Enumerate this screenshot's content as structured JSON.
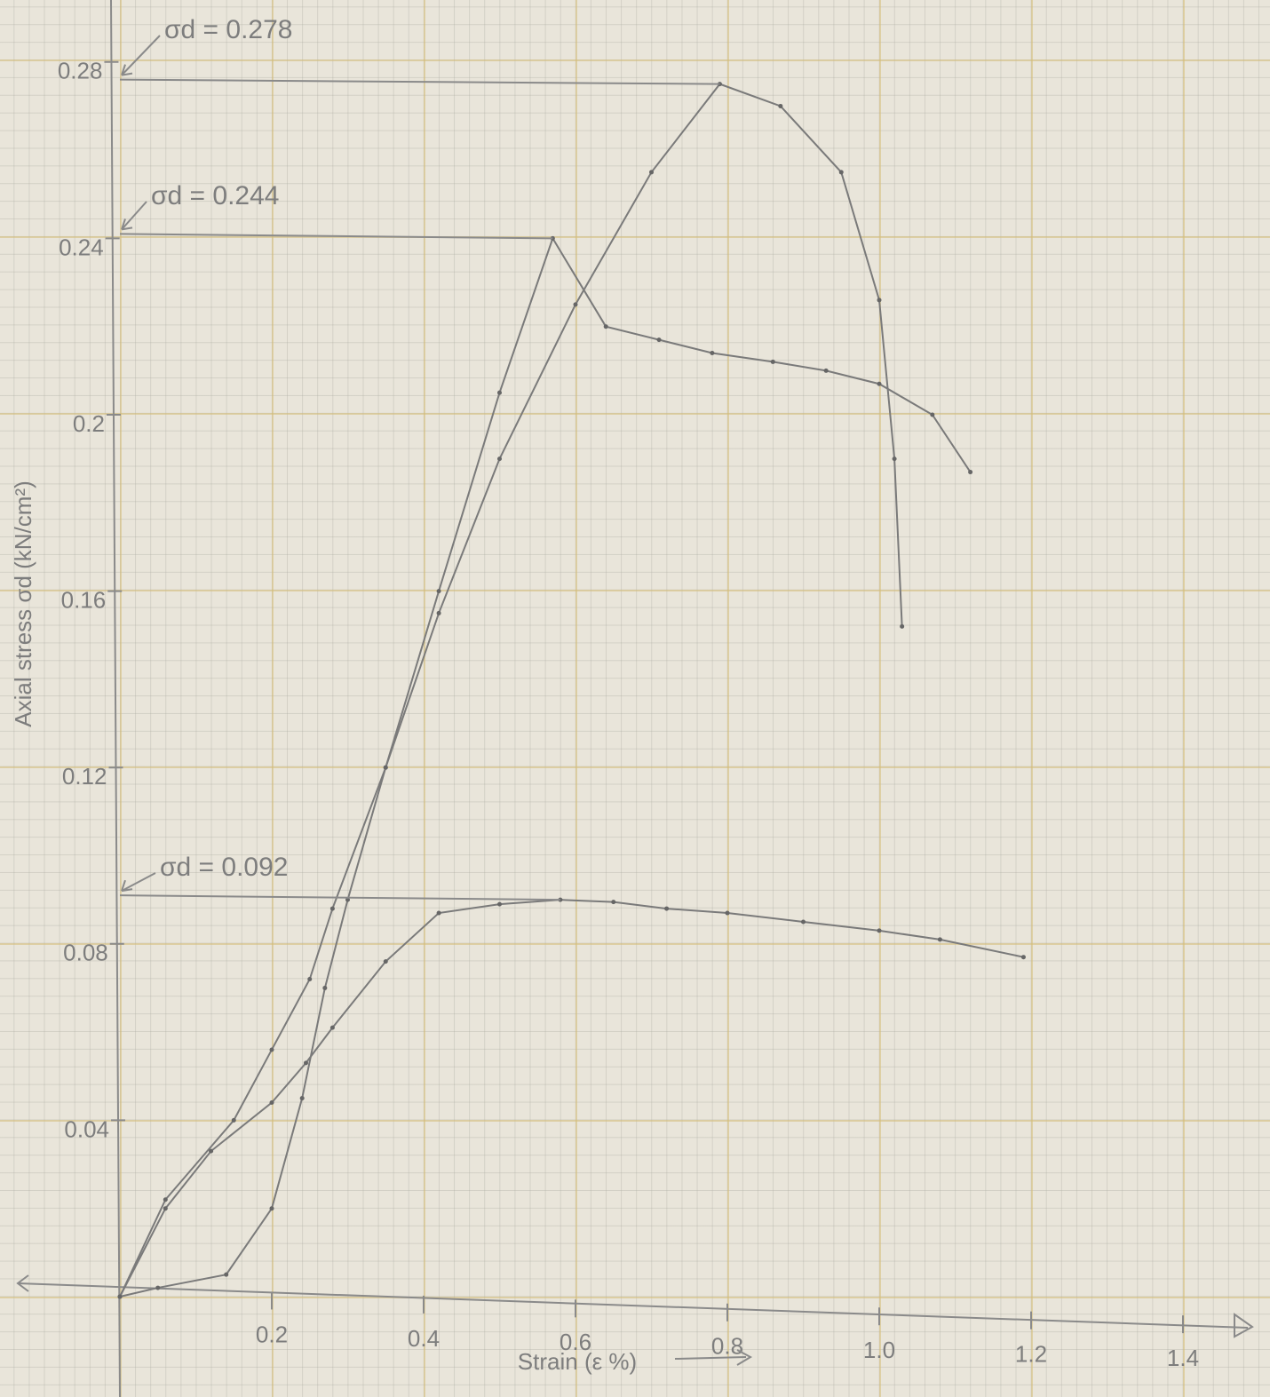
{
  "chart_data": {
    "type": "line",
    "x_label": "Strain (ε %)",
    "y_label": "Axial stress σd (kN/cm²)",
    "xlim": [
      0,
      1.5
    ],
    "ylim": [
      0,
      0.29
    ],
    "xticks": [
      0.2,
      0.4,
      0.6,
      0.8,
      {
        "value": 1,
        "label": "1.0"
      },
      1.2,
      1.4
    ],
    "yticks": [
      0.04,
      0.08,
      0.12,
      0.16,
      0.2,
      0.24,
      0.28
    ],
    "annotations": [
      "σd = 0.278",
      "σd = 0.244",
      "σd = 0.092"
    ],
    "series": [
      {
        "color": "#7a7a7a",
        "x": [
          0,
          0.05,
          0.14,
          0.2,
          0.24,
          0.27,
          0.3,
          0.35,
          0.42,
          0.5,
          0.6,
          0.7,
          0.79,
          0.87,
          0.95,
          1.0,
          1.02,
          1.03
        ],
        "values": [
          0,
          0.002,
          0.005,
          0.02,
          0.045,
          0.07,
          0.09,
          0.12,
          0.155,
          0.19,
          0.225,
          0.255,
          0.275,
          0.27,
          0.255,
          0.226,
          0.19,
          0.152
        ]
      },
      {
        "color": "#7a7a7a",
        "x": [
          0,
          0.06,
          0.15,
          0.2,
          0.25,
          0.28,
          0.35,
          0.42,
          0.5,
          0.57,
          0.64,
          0.71,
          0.78,
          0.86,
          0.93,
          1.0,
          1.07,
          1.12
        ],
        "values": [
          0,
          0.022,
          0.04,
          0.056,
          0.072,
          0.088,
          0.12,
          0.16,
          0.205,
          0.24,
          0.22,
          0.217,
          0.214,
          0.212,
          0.21,
          0.207,
          0.2,
          0.187
        ]
      },
      {
        "color": "#7a7a7a",
        "x": [
          0,
          0.06,
          0.12,
          0.2,
          0.245,
          0.28,
          0.35,
          0.42,
          0.5,
          0.58,
          0.65,
          0.72,
          0.8,
          0.9,
          1.0,
          1.08,
          1.19
        ],
        "values": [
          0,
          0.02,
          0.033,
          0.044,
          0.053,
          0.061,
          0.076,
          0.087,
          0.089,
          0.09,
          0.0895,
          0.088,
          0.087,
          0.085,
          0.083,
          0.081,
          0.077
        ]
      }
    ]
  }
}
